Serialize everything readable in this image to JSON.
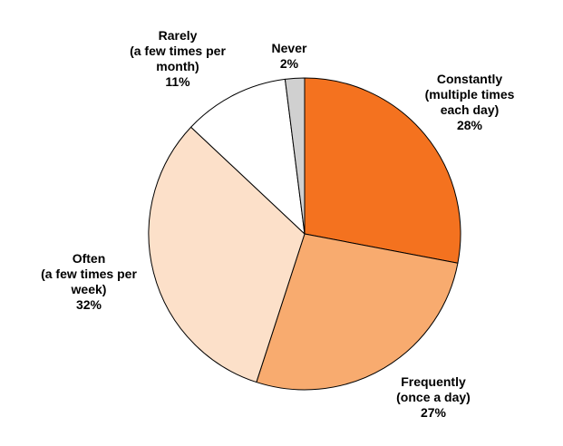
{
  "chart_data": {
    "type": "pie",
    "title": "",
    "start_angle_deg": 0,
    "direction": "clockwise",
    "slices": [
      {
        "label_lines": [
          "Constantly",
          "(multiple times",
          "each day)"
        ],
        "value": 28,
        "value_text": "28%",
        "color": "#f4721f"
      },
      {
        "label_lines": [
          "Frequently",
          "(once a day)"
        ],
        "value": 27,
        "value_text": "27%",
        "color": "#f8ab6f"
      },
      {
        "label_lines": [
          "Often",
          "(a few times per",
          "week)"
        ],
        "value": 32,
        "value_text": "32%",
        "color": "#fce0c9"
      },
      {
        "label_lines": [
          "Rarely",
          "(a few times per",
          "month)"
        ],
        "value": 11,
        "value_text": "11%",
        "color": "#ffffff"
      },
      {
        "label_lines": [
          "Never"
        ],
        "value": 2,
        "value_text": "2%",
        "color": "#d0d0d0"
      }
    ]
  }
}
